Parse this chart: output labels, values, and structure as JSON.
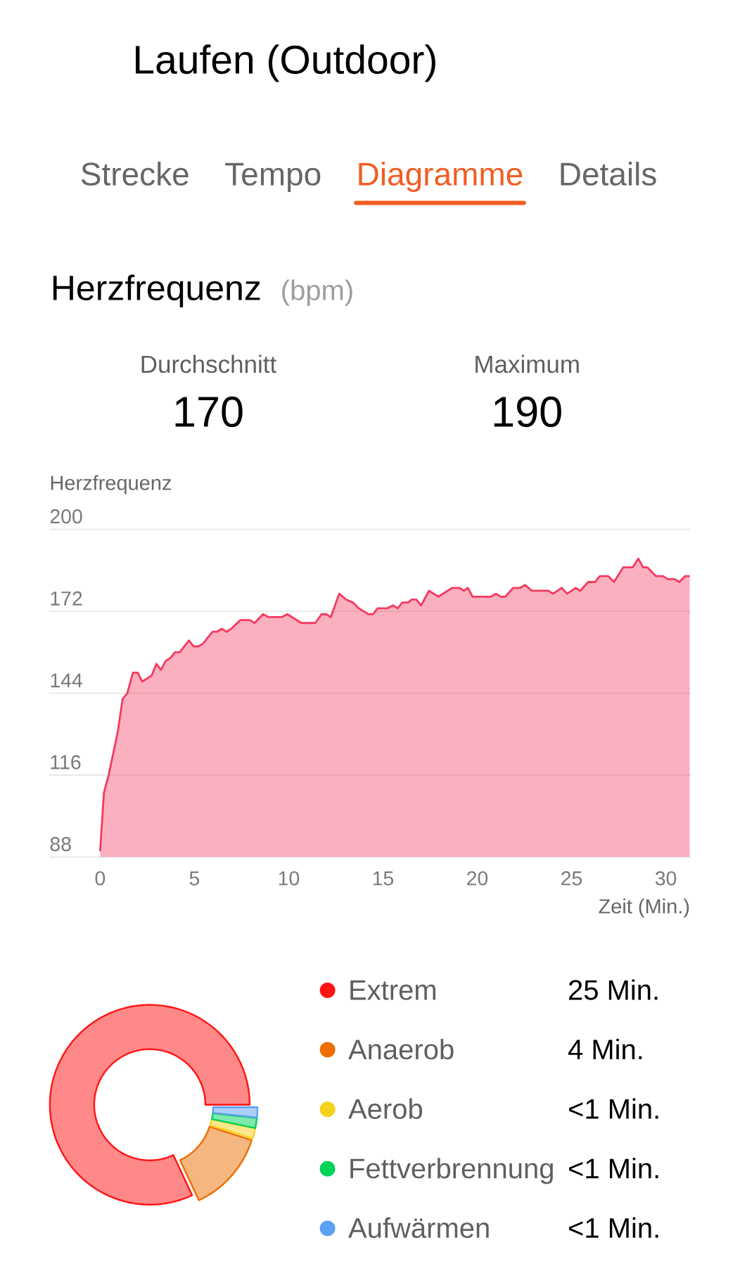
{
  "chart_data": [
    {
      "type": "other",
      "title": "Laufen (Outdoor)",
      "annotations": [
        "Strecke",
        "Tempo",
        "Diagramme",
        "Details"
      ]
    },
    {
      "type": "area",
      "title": "Herzfrequenz",
      "subtitle": "(bpm)",
      "annotations": [
        "Durchschnitt",
        "170",
        "Maximum",
        "190"
      ],
      "ylabel": "Herzfrequenz",
      "xlabel": "Zeit (Min.)",
      "x": [
        0,
        0.2,
        0.45,
        0.94,
        1.19,
        1.44,
        1.74,
        1.99,
        2.23,
        2.73,
        2.98,
        3.23,
        3.47,
        3.72,
        3.97,
        4.22,
        4.71,
        4.96,
        5.21,
        5.46,
        5.96,
        6.2,
        6.45,
        6.7,
        6.95,
        7.44,
        7.94,
        8.19,
        8.64,
        8.93,
        9.63,
        9.93,
        10.67,
        11.41,
        11.74,
        11.99,
        12.23,
        12.68,
        13.05,
        13.4,
        13.72,
        14.22,
        14.47,
        14.71,
        15.21,
        15.53,
        15.78,
        16.03,
        16.33,
        16.53,
        16.77,
        17.02,
        17.44,
        17.94,
        18.68,
        19.06,
        19.3,
        19.5,
        19.75,
        20.74,
        20.99,
        21.24,
        21.49,
        21.91,
        22.28,
        22.53,
        22.9,
        23.77,
        24.02,
        24.47,
        24.77,
        25.21,
        25.46,
        25.88,
        26.25,
        26.5,
        26.95,
        27.25,
        27.74,
        28.24,
        28.54,
        28.79,
        29.03,
        29.48,
        29.85,
        30.1,
        30.47,
        30.72,
        31.02,
        31.27
      ],
      "series": [
        {
          "color": "#f43a5f",
          "values": [
            90,
            110,
            116,
            131,
            142,
            144,
            151,
            151,
            148,
            150,
            154,
            152,
            155,
            156,
            158,
            158,
            162,
            160,
            160,
            161,
            165,
            165,
            166,
            165,
            166,
            169,
            169,
            168,
            171,
            170,
            170,
            171,
            168,
            168,
            171,
            171,
            170,
            178,
            176,
            175,
            173,
            171,
            171,
            173,
            173,
            174,
            173,
            175,
            175,
            176,
            176,
            174,
            179,
            177,
            180,
            180,
            179,
            180,
            177,
            177,
            178,
            177,
            177,
            180,
            180,
            181,
            179,
            179,
            178,
            180,
            178,
            180,
            179,
            182,
            182,
            184,
            184,
            182,
            187,
            187,
            190,
            187,
            187,
            184,
            184,
            183,
            183,
            182,
            184,
            184
          ]
        }
      ],
      "xlim": [
        -2.7,
        31.3
      ],
      "ylim": [
        88,
        200
      ],
      "xticks": [
        0,
        5,
        10,
        15,
        20,
        25,
        30
      ],
      "yticks": [
        88,
        116,
        144,
        172,
        200
      ],
      "grid": "y"
    },
    {
      "type": "donut",
      "categories": [
        "Extrem",
        "Anaerob",
        "Aerob",
        "Fettverbrennung",
        "Aufwärmen"
      ],
      "values": [
        25,
        4,
        0.5,
        0.5,
        0.5
      ],
      "value_labels": [
        "25 Min.",
        "4 Min.",
        "<1 Min.",
        "<1 Min.",
        "<1 Min."
      ],
      "colors": [
        "#ff1414",
        "#ee6e00",
        "#f5d21e",
        "#00d25a",
        "#5aa0f5"
      ],
      "legend": "right"
    }
  ]
}
